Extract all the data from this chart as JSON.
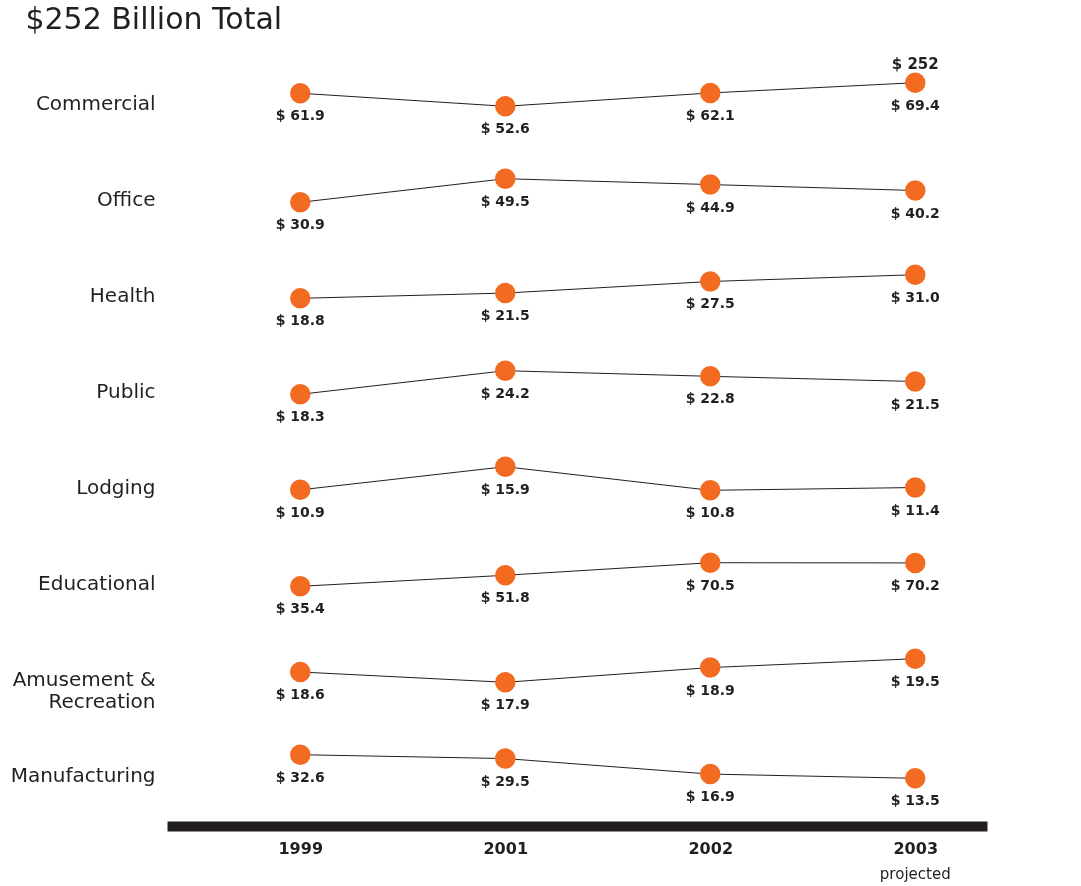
{
  "chart_data": [
    {
      "type": "line",
      "title": "$252 Billion Total",
      "ylabel": "Commercial",
      "categories": [
        "1999",
        "2001",
        "2002",
        "2003"
      ],
      "values": [
        61.9,
        52.6,
        62.1,
        69.4
      ],
      "value_labels": [
        "$ 61.9",
        "$ 52.6",
        "$ 62.1",
        "$ 69.4"
      ],
      "color": "#231f20",
      "colors": [
        "#f26b21",
        "#f26b21",
        "#f26b21",
        "#f26b21"
      ],
      "marker": "circle",
      "tick_labels": false,
      "annotations": [
        "$ 252"
      ]
    },
    {
      "type": "line",
      "ylabel": "Office",
      "categories": [
        "1999",
        "2001",
        "2002",
        "2003"
      ],
      "values": [
        30.9,
        49.5,
        44.9,
        40.2
      ],
      "value_labels": [
        "$ 30.9",
        "$ 49.5",
        "$ 44.9",
        "$ 40.2"
      ],
      "color": "#231f20",
      "colors": [
        "#f26b21",
        "#f26b21",
        "#f26b21",
        "#f26b21"
      ],
      "marker": "circle",
      "tick_labels": false
    },
    {
      "type": "line",
      "ylabel": "Health",
      "categories": [
        "1999",
        "2001",
        "2002",
        "2003"
      ],
      "values": [
        18.8,
        21.5,
        27.5,
        31.0
      ],
      "value_labels": [
        "$ 18.8",
        "$ 21.5",
        "$ 27.5",
        "$ 31.0"
      ],
      "color": "#231f20",
      "colors": [
        "#f26b21",
        "#f26b21",
        "#f26b21",
        "#f26b21"
      ],
      "marker": "circle",
      "tick_labels": false
    },
    {
      "type": "line",
      "ylabel": "Public",
      "categories": [
        "1999",
        "2001",
        "2002",
        "2003"
      ],
      "values": [
        18.3,
        24.2,
        22.8,
        21.5
      ],
      "value_labels": [
        "$ 18.3",
        "$ 24.2",
        "$ 22.8",
        "$ 21.5"
      ],
      "color": "#231f20",
      "colors": [
        "#f26b21",
        "#f26b21",
        "#f26b21",
        "#f26b21"
      ],
      "marker": "circle",
      "tick_labels": false
    },
    {
      "type": "line",
      "ylabel": "Lodging",
      "categories": [
        "1999",
        "2001",
        "2002",
        "2003"
      ],
      "values": [
        10.9,
        15.9,
        10.8,
        11.4
      ],
      "value_labels": [
        "$ 10.9",
        "$ 15.9",
        "$ 10.8",
        "$ 11.4"
      ],
      "color": "#231f20",
      "colors": [
        "#f26b21",
        "#f26b21",
        "#f26b21",
        "#f26b21"
      ],
      "marker": "circle",
      "tick_labels": false
    },
    {
      "type": "line",
      "ylabel": "Educational",
      "categories": [
        "1999",
        "2001",
        "2002",
        "2003"
      ],
      "values": [
        35.4,
        51.8,
        70.5,
        70.2
      ],
      "value_labels": [
        "$ 35.4",
        "$ 51.8",
        "$ 70.5",
        "$ 70.2"
      ],
      "color": "#231f20",
      "colors": [
        "#f26b21",
        "#f26b21",
        "#f26b21",
        "#f26b21"
      ],
      "marker": "circle",
      "tick_labels": false
    },
    {
      "type": "line",
      "ylabel": "Amusement & Recreation",
      "categories": [
        "1999",
        "2001",
        "2002",
        "2003"
      ],
      "values": [
        18.6,
        17.9,
        18.9,
        19.5
      ],
      "value_labels": [
        "$ 18.6",
        "$ 17.9",
        "$ 18.9",
        "$ 19.5"
      ],
      "color": "#231f20",
      "colors": [
        "#f26b21",
        "#f26b21",
        "#f26b21",
        "#f26b21"
      ],
      "marker": "circle",
      "tick_labels": false
    },
    {
      "type": "line",
      "ylabel": "Manufacturing",
      "categories": [
        "1999",
        "2001",
        "2002",
        "2003"
      ],
      "values": [
        32.6,
        29.5,
        16.9,
        13.5
      ],
      "value_labels": [
        "$ 32.6",
        "$ 29.5",
        "$ 16.9",
        "$ 13.5"
      ],
      "color": "#231f20",
      "colors": [
        "#f26b21",
        "#f26b21",
        "#f26b21",
        "#f26b21"
      ],
      "marker": "circle",
      "tick_labels": "x",
      "annotations": [
        "projected"
      ]
    }
  ]
}
